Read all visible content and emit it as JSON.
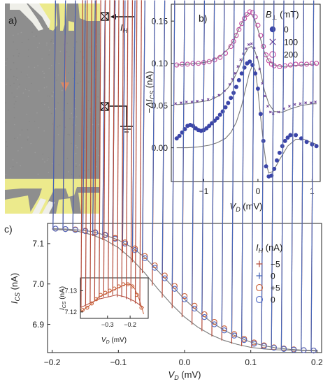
{
  "colors": {
    "sem_bg": "#8e8e8e",
    "gate_yellow": "#ecea8c",
    "gate_white": "#efefe9",
    "arrow": "#d98a66",
    "series_0mT": "#3b45a8",
    "series_100mT": "#6b3d93",
    "series_200mT": "#c24aa0",
    "fit_line": "#777777",
    "c_minus5": "#b34a3a",
    "c_plus0": "#4565b8",
    "c_plus5": "#c8603a",
    "c_zero": "#4f68c3"
  },
  "panels": {
    "a": {
      "label": "a)",
      "current_label": "I",
      "current_sub": "H",
      "icons": [
        "current-source-icon",
        "ground-icon"
      ]
    }
  },
  "chart_data": [
    {
      "id": "b",
      "type": "scatter",
      "panel_label": "b)",
      "xlabel": "V",
      "xlabel_sub": "D",
      "xlabel_unit": " (mV)",
      "ylabel_prefix": "−ΔI",
      "ylabel_sub": "CS",
      "ylabel_unit": " (nA)",
      "xlim": [
        -1.6,
        1.15
      ],
      "ylim": [
        -0.04,
        0.17
      ],
      "xticks": [
        -1,
        0,
        1
      ],
      "xtick_labels": [
        "−1",
        "0",
        "1"
      ],
      "yticks": [
        0.0,
        0.05,
        0.1,
        0.15
      ],
      "ytick_labels": [
        "0.00",
        "0.05",
        "0.10",
        "0.15"
      ],
      "legend_title": "B",
      "legend_title_sub": "⊥",
      "legend_unit": " (mT)",
      "legend_position": "top-right",
      "series": [
        {
          "name": "200",
          "marker": "open-circle",
          "color_key": "series_200mT",
          "x": [
            -1.5,
            -1.4,
            -1.3,
            -1.2,
            -1.1,
            -1.0,
            -0.9,
            -0.8,
            -0.7,
            -0.6,
            -0.5,
            -0.45,
            -0.4,
            -0.35,
            -0.3,
            -0.25,
            -0.2,
            -0.15,
            -0.1,
            -0.05,
            0.0,
            0.05,
            0.1,
            0.15,
            0.2,
            0.25,
            0.3,
            0.4,
            0.5,
            0.6,
            0.7,
            0.8,
            0.9,
            1.0,
            1.08
          ],
          "y": [
            0.098,
            0.099,
            0.099,
            0.1,
            0.1,
            0.101,
            0.102,
            0.104,
            0.107,
            0.112,
            0.12,
            0.126,
            0.133,
            0.14,
            0.147,
            0.153,
            0.158,
            0.161,
            0.16,
            0.155,
            0.145,
            0.133,
            0.12,
            0.11,
            0.103,
            0.099,
            0.097,
            0.096,
            0.097,
            0.098,
            0.099,
            0.099,
            0.099,
            0.1,
            0.1
          ]
        },
        {
          "name": "100",
          "marker": "cross",
          "color_key": "series_100mT",
          "x": [
            -1.5,
            -1.4,
            -1.3,
            -1.2,
            -1.1,
            -1.0,
            -0.9,
            -0.8,
            -0.7,
            -0.6,
            -0.5,
            -0.45,
            -0.4,
            -0.35,
            -0.3,
            -0.25,
            -0.2,
            -0.15,
            -0.1,
            -0.05,
            0.0,
            0.05,
            0.1,
            0.15,
            0.2,
            0.25,
            0.3,
            0.4,
            0.5,
            0.6,
            0.7,
            0.8,
            0.9,
            1.0,
            1.08
          ],
          "y": [
            0.051,
            0.052,
            0.053,
            0.053,
            0.054,
            0.055,
            0.056,
            0.058,
            0.061,
            0.066,
            0.074,
            0.08,
            0.087,
            0.095,
            0.103,
            0.11,
            0.116,
            0.121,
            0.122,
            0.117,
            0.106,
            0.092,
            0.075,
            0.06,
            0.048,
            0.041,
            0.039,
            0.041,
            0.045,
            0.048,
            0.05,
            0.051,
            0.052,
            0.052,
            0.053
          ]
        },
        {
          "name": "0",
          "marker": "filled-circle",
          "color_key": "series_0mT",
          "x": [
            -1.5,
            -1.45,
            -1.4,
            -1.35,
            -1.3,
            -1.25,
            -1.2,
            -1.15,
            -1.1,
            -1.05,
            -1.0,
            -0.95,
            -0.9,
            -0.85,
            -0.8,
            -0.75,
            -0.7,
            -0.65,
            -0.6,
            -0.55,
            -0.5,
            -0.45,
            -0.4,
            -0.35,
            -0.3,
            -0.25,
            -0.2,
            -0.15,
            -0.1,
            -0.05,
            0.0,
            0.05,
            0.1,
            0.15,
            0.2,
            0.25,
            0.3,
            0.35,
            0.4,
            0.45,
            0.5,
            0.55,
            0.6,
            0.7,
            0.8,
            0.9,
            1.0,
            1.08
          ],
          "y": [
            0.011,
            0.014,
            0.018,
            0.022,
            0.026,
            0.027,
            0.026,
            0.023,
            0.021,
            0.02,
            0.021,
            0.023,
            0.026,
            0.029,
            0.032,
            0.035,
            0.039,
            0.043,
            0.048,
            0.053,
            0.059,
            0.065,
            0.072,
            0.08,
            0.088,
            0.095,
            0.1,
            0.102,
            0.098,
            0.088,
            0.07,
            0.04,
            0.008,
            -0.022,
            -0.034,
            -0.033,
            -0.025,
            -0.015,
            -0.006,
            0.002,
            0.008,
            0.012,
            0.015,
            0.015,
            0.011,
            0.007,
            0.004,
            0.002
          ]
        }
      ],
      "fits": [
        {
          "color_key": "fit_line",
          "x": [
            -1.5,
            -1.3,
            -1.1,
            -0.9,
            -0.7,
            -0.55,
            -0.45,
            -0.35,
            -0.25,
            -0.18,
            -0.12,
            -0.06,
            0.0,
            0.06,
            0.12,
            0.2,
            0.3,
            0.45,
            0.6,
            0.8,
            1.0,
            1.08
          ],
          "y": [
            0.098,
            0.099,
            0.1,
            0.102,
            0.108,
            0.117,
            0.127,
            0.141,
            0.154,
            0.159,
            0.158,
            0.152,
            0.14,
            0.126,
            0.113,
            0.103,
            0.098,
            0.096,
            0.097,
            0.098,
            0.099,
            0.099
          ]
        },
        {
          "color_key": "fit_line",
          "x": [
            -1.5,
            -1.3,
            -1.1,
            -0.9,
            -0.7,
            -0.55,
            -0.45,
            -0.35,
            -0.25,
            -0.18,
            -0.12,
            -0.06,
            0.0,
            0.06,
            0.12,
            0.2,
            0.3,
            0.45,
            0.6,
            0.8,
            1.0,
            1.08
          ],
          "y": [
            0.051,
            0.052,
            0.054,
            0.056,
            0.062,
            0.071,
            0.081,
            0.095,
            0.11,
            0.118,
            0.12,
            0.115,
            0.104,
            0.086,
            0.068,
            0.052,
            0.043,
            0.042,
            0.046,
            0.05,
            0.052,
            0.052
          ]
        },
        {
          "color_key": "fit_line",
          "x": [
            -1.5,
            -1.3,
            -1.1,
            -0.9,
            -0.75,
            -0.6,
            -0.5,
            -0.4,
            -0.3,
            -0.22,
            -0.16,
            -0.1,
            -0.05,
            0.0,
            0.05,
            0.1,
            0.15,
            0.2,
            0.28,
            0.4,
            0.55,
            0.7,
            0.85,
            1.0,
            1.08
          ],
          "y": [
            0.0,
            0.0,
            0.001,
            0.003,
            0.006,
            0.011,
            0.018,
            0.03,
            0.05,
            0.072,
            0.088,
            0.098,
            0.092,
            0.068,
            0.036,
            0.006,
            -0.018,
            -0.03,
            -0.028,
            -0.014,
            0.002,
            0.01,
            0.01,
            0.006,
            0.004
          ]
        }
      ]
    },
    {
      "id": "c",
      "type": "scatter",
      "panel_label": "c)",
      "xlabel": "V",
      "xlabel_sub": "D",
      "xlabel_unit": " (mV)",
      "ylabel": "I",
      "ylabel_sub": "CS",
      "ylabel_unit": " (nA)",
      "xlim": [
        -0.207,
        0.207
      ],
      "ylim": [
        6.83,
        7.15
      ],
      "xticks": [
        -0.2,
        -0.1,
        0.0,
        0.1,
        0.2
      ],
      "xtick_labels": [
        "−0.2",
        "−0.1",
        "0.0",
        "0.1",
        "0.2"
      ],
      "yticks": [
        6.9,
        7.0,
        7.1
      ],
      "ytick_labels": [
        "6.9",
        "7.0",
        "7.1"
      ],
      "legend_title": "I",
      "legend_title_sub": "H",
      "legend_unit": " (nA)",
      "legend_position": "right",
      "series": [
        {
          "name": "−5",
          "marker": "plus",
          "color_key": "c_minus5",
          "x": [
            -0.195,
            -0.18,
            -0.165,
            -0.15,
            -0.135,
            -0.12,
            -0.105,
            -0.09,
            -0.075,
            -0.06,
            -0.045,
            -0.03,
            -0.015,
            0.0,
            0.015,
            0.03,
            0.045,
            0.06,
            0.075,
            0.09,
            0.105,
            0.12,
            0.135,
            0.15,
            0.165,
            0.18,
            0.195
          ],
          "y": [
            7.135,
            7.134,
            7.131,
            7.126,
            7.119,
            7.109,
            7.095,
            7.077,
            7.054,
            7.027,
            6.996,
            6.966,
            6.94,
            6.918,
            6.899,
            6.883,
            6.87,
            6.86,
            6.852,
            6.846,
            6.842,
            6.839,
            6.837,
            6.836,
            6.835,
            6.835,
            6.834
          ]
        },
        {
          "name": "0",
          "marker": "plus",
          "color_key": "c_plus0",
          "x": [
            -0.195,
            -0.18,
            -0.165,
            -0.15,
            -0.135,
            -0.12,
            -0.105,
            -0.09,
            -0.075,
            -0.06,
            -0.045,
            -0.03,
            -0.015,
            0.0,
            0.015,
            0.03,
            0.045,
            0.06,
            0.075,
            0.09,
            0.105,
            0.12,
            0.135,
            0.15,
            0.165,
            0.18,
            0.195
          ],
          "y": [
            7.137,
            7.136,
            7.134,
            7.131,
            7.127,
            7.121,
            7.112,
            7.1,
            7.084,
            7.064,
            7.04,
            7.014,
            6.988,
            6.962,
            6.939,
            6.918,
            6.9,
            6.885,
            6.872,
            6.861,
            6.852,
            6.846,
            6.842,
            6.839,
            6.837,
            6.836,
            6.835
          ]
        },
        {
          "name": "+5",
          "marker": "open-circle",
          "color_key": "c_plus5",
          "x": [
            -0.195,
            -0.18,
            -0.165,
            -0.15,
            -0.135,
            -0.12,
            -0.105,
            -0.09,
            -0.075,
            -0.06,
            -0.045,
            -0.03,
            -0.015,
            0.0,
            0.015,
            0.03,
            0.045,
            0.06,
            0.075,
            0.09,
            0.105,
            0.12,
            0.135,
            0.15,
            0.165,
            0.18,
            0.195
          ],
          "y": [
            7.137,
            7.136,
            7.135,
            7.132,
            7.128,
            7.122,
            7.114,
            7.103,
            7.088,
            7.069,
            7.046,
            7.021,
            6.995,
            6.97,
            6.946,
            6.925,
            6.906,
            6.89,
            6.876,
            6.864,
            6.855,
            6.848,
            6.843,
            6.84,
            6.838,
            6.836,
            6.835
          ]
        },
        {
          "name": "0",
          "marker": "open-circle",
          "color_key": "c_zero",
          "x": [
            -0.195,
            -0.18,
            -0.165,
            -0.15,
            -0.135,
            -0.12,
            -0.105,
            -0.09,
            -0.075,
            -0.06,
            -0.045,
            -0.03,
            -0.015,
            0.0,
            0.015,
            0.03,
            0.045,
            0.06,
            0.075,
            0.09,
            0.105,
            0.12,
            0.135,
            0.15,
            0.165,
            0.18,
            0.195
          ],
          "y": [
            7.137,
            7.136,
            7.134,
            7.131,
            7.127,
            7.121,
            7.112,
            7.1,
            7.084,
            7.064,
            7.04,
            7.014,
            6.988,
            6.962,
            6.939,
            6.918,
            6.9,
            6.885,
            6.872,
            6.861,
            6.852,
            6.846,
            6.842,
            6.839,
            6.837,
            6.836,
            6.835
          ]
        }
      ],
      "fits": [
        {
          "color_key": "fit_line",
          "x": [
            -0.2,
            -0.18,
            -0.16,
            -0.14,
            -0.12,
            -0.1,
            -0.08,
            -0.06,
            -0.04,
            -0.02,
            0.0,
            0.02,
            0.04,
            0.06,
            0.08,
            0.1,
            0.12,
            0.14,
            0.16,
            0.18,
            0.2
          ],
          "y": [
            7.135,
            7.134,
            7.13,
            7.122,
            7.109,
            7.09,
            7.062,
            7.027,
            6.987,
            6.95,
            6.918,
            6.893,
            6.874,
            6.86,
            6.85,
            6.843,
            6.839,
            6.837,
            6.836,
            6.835,
            6.834
          ]
        },
        {
          "color_key": "fit_line",
          "x": [
            -0.2,
            -0.18,
            -0.16,
            -0.14,
            -0.12,
            -0.1,
            -0.08,
            -0.06,
            -0.04,
            -0.02,
            0.0,
            0.02,
            0.04,
            0.06,
            0.08,
            0.1,
            0.12,
            0.14,
            0.16,
            0.18,
            0.2
          ],
          "y": [
            7.137,
            7.136,
            7.134,
            7.13,
            7.121,
            7.109,
            7.091,
            7.066,
            7.032,
            6.997,
            6.962,
            6.932,
            6.906,
            6.885,
            6.869,
            6.856,
            6.847,
            6.841,
            6.838,
            6.836,
            6.835
          ]
        }
      ],
      "inset": {
        "xlabel": "V",
        "xlabel_sub": "D",
        "xlabel_unit": " (mV)",
        "ylabel": "I",
        "ylabel_sub": "CS",
        "ylabel_unit": " (nA)",
        "xlim": [
          -0.42,
          -0.12
        ],
        "ylim": [
          7.117,
          7.136
        ],
        "xticks": [
          -0.3,
          -0.2
        ],
        "xtick_labels": [
          "−0.3",
          "−0.2"
        ],
        "yticks": [
          7.12,
          7.13
        ],
        "ytick_labels": [
          "7.12",
          "7.13"
        ],
        "series": [
          {
            "marker": "plus",
            "color_key": "c_minus5",
            "x": [
              -0.41,
              -0.39,
              -0.37,
              -0.35,
              -0.33,
              -0.31,
              -0.29,
              -0.27,
              -0.25,
              -0.23,
              -0.21,
              -0.19,
              -0.17,
              -0.15
            ],
            "y": [
              7.122,
              7.123,
              7.124,
              7.125,
              7.126,
              7.127,
              7.127,
              7.128,
              7.127,
              7.127,
              7.126,
              7.125,
              7.124,
              7.123
            ]
          },
          {
            "marker": "open-circle",
            "color_key": "c_plus5",
            "x": [
              -0.41,
              -0.39,
              -0.37,
              -0.35,
              -0.33,
              -0.31,
              -0.29,
              -0.27,
              -0.25,
              -0.23,
              -0.21,
              -0.19,
              -0.17,
              -0.15
            ],
            "y": [
              7.121,
              7.122,
              7.124,
              7.126,
              7.128,
              7.129,
              7.13,
              7.131,
              7.132,
              7.133,
              7.133,
              7.132,
              7.128,
              7.122
            ]
          }
        ],
        "fits": [
          {
            "color_key": "c_minus5",
            "x": [
              -0.42,
              -0.38,
              -0.34,
              -0.3,
              -0.26,
              -0.22,
              -0.18,
              -0.14
            ],
            "y": [
              7.122,
              7.124,
              7.126,
              7.127,
              7.128,
              7.127,
              7.125,
              7.122
            ]
          },
          {
            "color_key": "c_plus5",
            "x": [
              -0.42,
              -0.38,
              -0.34,
              -0.3,
              -0.26,
              -0.22,
              -0.2,
              -0.18,
              -0.16,
              -0.14
            ],
            "y": [
              7.12,
              7.123,
              7.127,
              7.129,
              7.131,
              7.133,
              7.133,
              7.131,
              7.126,
              7.119
            ]
          }
        ]
      }
    }
  ]
}
